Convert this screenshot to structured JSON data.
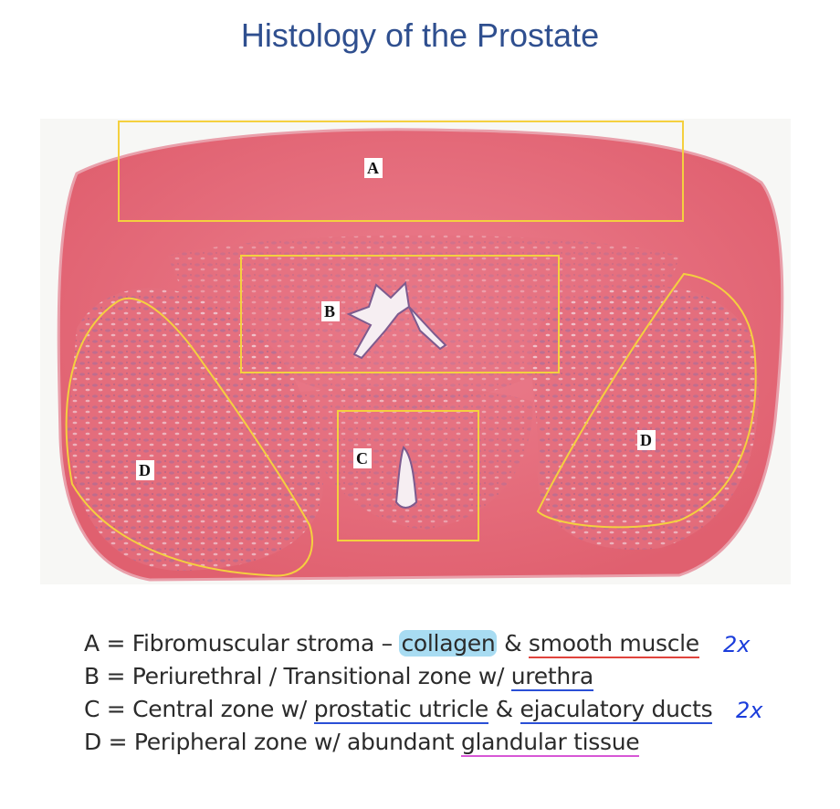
{
  "title": "Histology of the Prostate",
  "figure": {
    "zone_labels": {
      "a": "A",
      "b": "B",
      "c": "C",
      "d_left": "D",
      "d_right": "D"
    },
    "colors": {
      "tissue": "#e9707c",
      "tissue_dark": "#d9505f",
      "gland": "#8b6fa8",
      "box": "#f4d03f",
      "background": "#f7f7f5"
    }
  },
  "legend": {
    "line_a": {
      "prefix": "A = Fibromuscular stroma – ",
      "highlighted": "collagen",
      "middle": " & ",
      "underlined": "smooth muscle"
    },
    "line_b": {
      "prefix": "B = Periurethral / Transitional zone w/ ",
      "underlined": "urethra"
    },
    "line_c": {
      "prefix": "C = Central zone w/ ",
      "underlined_1": "prostatic utricle",
      "middle": " & ",
      "underlined_2": "ejaculatory ducts"
    },
    "line_d": {
      "prefix": "D = Peripheral zone w/ abundant ",
      "underlined": "glandular tissue"
    }
  },
  "annotations": {
    "note_a": "2x",
    "note_c": "2x"
  }
}
